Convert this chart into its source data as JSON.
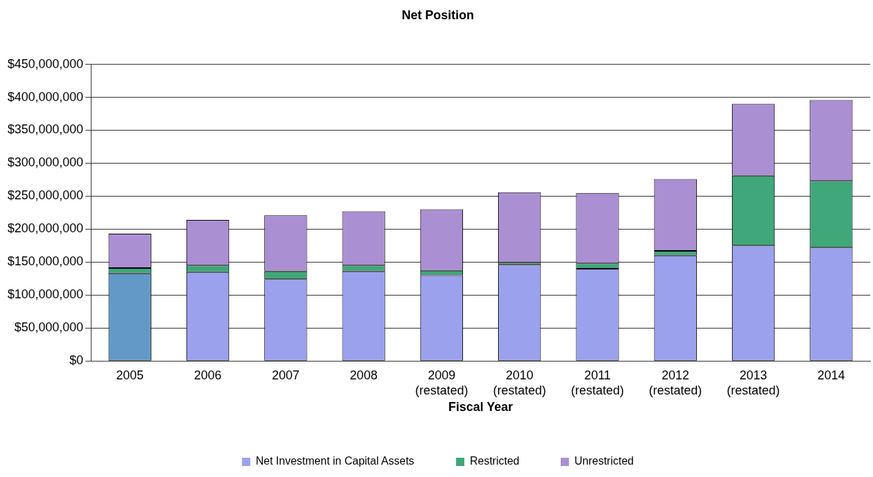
{
  "chart_data": {
    "type": "bar",
    "title": "Net Position",
    "xlabel": "Fiscal Year",
    "stacked": true,
    "legend": "bottom",
    "grid": "y",
    "categories": [
      "2005",
      "2006",
      "2007",
      "2008",
      "2009 (restated)",
      "2010 (restated)",
      "2011 (restated)",
      "2012 (restated)",
      "2013 (restated)",
      "2014"
    ],
    "series": [
      {
        "name": "Net Investment in Capital Assets",
        "color": "#9ba1ec",
        "colors": [
          "#6399c7",
          "#9ba1ec",
          "#9ba1ec",
          "#9ba1ec",
          "#9ba1ec",
          "#9ba1ec",
          "#9ba1ec",
          "#9ba1ec",
          "#9ba1ec",
          "#9ba1ec"
        ],
        "values": [
          133000000,
          135000000,
          124000000,
          136000000,
          130000000,
          146000000,
          140000000,
          160000000,
          175000000,
          172000000
        ]
      },
      {
        "name": "Restricted",
        "color": "#3fa77a",
        "values": [
          8000000,
          10000000,
          12000000,
          9000000,
          7000000,
          3000000,
          8000000,
          7000000,
          106000000,
          101000000
        ]
      },
      {
        "name": "Unrestricted",
        "color": "#ab8fd3",
        "values": [
          52000000,
          69000000,
          85000000,
          82000000,
          93000000,
          107000000,
          107000000,
          109000000,
          109000000,
          123000000
        ]
      }
    ],
    "ylim": [
      0,
      450000000
    ],
    "yticks": [
      {
        "value": 0,
        "label": "$0"
      },
      {
        "value": 50000000,
        "label": "$50,000,000"
      },
      {
        "value": 100000000,
        "label": "$100,000,000"
      },
      {
        "value": 150000000,
        "label": "$150,000,000"
      },
      {
        "value": 200000000,
        "label": "$200,000,000"
      },
      {
        "value": 250000000,
        "label": "$250,000,000"
      },
      {
        "value": 300000000,
        "label": "$300,000,000"
      },
      {
        "value": 350000000,
        "label": "$350,000,000"
      },
      {
        "value": 400000000,
        "label": "$400,000,000"
      },
      {
        "value": 450000000,
        "label": "$450,000,000"
      }
    ]
  }
}
